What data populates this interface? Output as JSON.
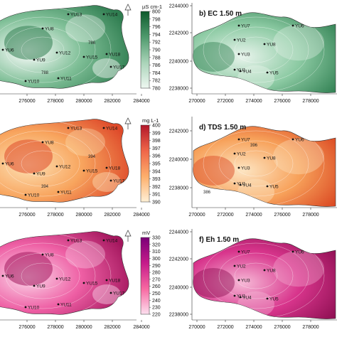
{
  "figure": {
    "panels": [
      {
        "id": "a",
        "label": "",
        "colorbar": {
          "unit": "µS cm-1",
          "ticks": [
            "800",
            "798",
            "796",
            "794",
            "792",
            "790",
            "788",
            "786",
            "784",
            "782",
            "780"
          ],
          "colors": [
            "#0d5a2c",
            "#4f9a6d",
            "#a9d3b8",
            "#eef7f1"
          ]
        },
        "fill": [
          "#ffffff",
          "#7fbf97",
          "#2f7d50"
        ],
        "wells": [
          "YU13",
          "YU14",
          "YU8",
          "YU6",
          "YU9",
          "YU12",
          "YU15",
          "YU18",
          "YU17",
          "YU11",
          "YU10"
        ],
        "contours": [
          "786",
          "788"
        ],
        "x_ticks": [
          "276000",
          "278000",
          "280000",
          "282000",
          "284000"
        ],
        "north": "N"
      },
      {
        "id": "b",
        "label": "b) EC 1.50 m",
        "wells": [
          "YU7",
          "YU6",
          "YU2",
          "YU3",
          "YU8",
          "YU1",
          "YU4",
          "YU5"
        ],
        "fill": [
          "#e8f4ec",
          "#8ccaa3",
          "#2e7e50"
        ],
        "x_ticks": [
          "270000",
          "272000",
          "274000",
          "276000",
          "278000"
        ],
        "y_ticks": [
          "2244000",
          "2242000",
          "2240000",
          "2238000"
        ]
      },
      {
        "id": "c",
        "label": "",
        "colorbar": {
          "unit": "mg L-1",
          "ticks": [
            "400",
            "399",
            "398",
            "397",
            "396",
            "395",
            "394",
            "393",
            "392",
            "391",
            "390"
          ],
          "colors": [
            "#b2182b",
            "#ef6548",
            "#fdae6b",
            "#fff0d6"
          ]
        },
        "fill": [
          "#fde1b5",
          "#f8a55e",
          "#de4a2a"
        ],
        "wells": [
          "YU13",
          "YU14",
          "YU8",
          "YU6",
          "YU9",
          "YU12",
          "YU15",
          "YU18",
          "YU17",
          "YU11",
          "YU10"
        ],
        "contours": [
          "394",
          "394"
        ],
        "x_ticks": [
          "276000",
          "278000",
          "280000",
          "282000",
          "284000"
        ],
        "north": "N"
      },
      {
        "id": "d",
        "label": "d) TDS 1.50 m",
        "wells": [
          "YU7",
          "YU6",
          "YU2",
          "YU3",
          "YU8",
          "YU1",
          "YU4",
          "YU5"
        ],
        "contours": [
          "396",
          "386"
        ],
        "fill": [
          "#fde5c2",
          "#f7a15a",
          "#d9431f"
        ],
        "x_ticks": [
          "270000",
          "272000",
          "274000",
          "276000",
          "278000"
        ],
        "y_ticks": [
          "2242000",
          "2240000",
          "2238000"
        ]
      },
      {
        "id": "e",
        "label": "",
        "colorbar": {
          "unit": "mV",
          "ticks": [
            "330",
            "320",
            "310",
            "300",
            "290",
            "280",
            "270",
            "260",
            "250",
            "240",
            "230",
            "220"
          ],
          "colors": [
            "#7a0177",
            "#c51b8a",
            "#f768a1",
            "#fde0ef"
          ]
        },
        "fill": [
          "#fbd8ea",
          "#ee5fa4",
          "#a3165d"
        ],
        "wells": [
          "YU13",
          "YU14",
          "YU8",
          "YU6",
          "YU9",
          "YU12",
          "YU15",
          "YU18",
          "YU17",
          "YU11",
          "YU10"
        ],
        "x_ticks": [
          "276000",
          "278000",
          "280000",
          "282000",
          "284000"
        ],
        "north": "N"
      },
      {
        "id": "f",
        "label": "f) Eh 1.50 m",
        "wells": [
          "YU7",
          "YU6",
          "YU2",
          "YU3",
          "YU8",
          "YU1",
          "YU4",
          "YU5"
        ],
        "fill": [
          "#f6b8d6",
          "#d8358c",
          "#8a0d4f"
        ],
        "x_ticks": [
          "270000",
          "272000",
          "274000",
          "276000",
          "278000"
        ],
        "y_ticks": [
          "2244000",
          "2242000",
          "2240000",
          "2238000"
        ]
      }
    ]
  },
  "chart_data": [
    {
      "type": "heatmap",
      "title": "",
      "colorbar_label": "µS cm-1",
      "colorbar_range": [
        780,
        800
      ],
      "x_ticks": [
        276000,
        278000,
        280000,
        282000,
        284000
      ],
      "wells": [
        "YU13",
        "YU14",
        "YU8",
        "YU6",
        "YU9",
        "YU12",
        "YU15",
        "YU18",
        "YU17",
        "YU11",
        "YU10"
      ],
      "contour_labels": [
        786,
        788
      ]
    },
    {
      "type": "heatmap",
      "title": "b) EC 1.50 m",
      "x_ticks": [
        270000,
        272000,
        274000,
        276000,
        278000
      ],
      "y_ticks": [
        2244000,
        2242000,
        2240000,
        2238000
      ],
      "wells": [
        "YU7",
        "YU6",
        "YU2",
        "YU3",
        "YU8",
        "YU1",
        "YU4",
        "YU5"
      ]
    },
    {
      "type": "heatmap",
      "title": "",
      "colorbar_label": "mg L-1",
      "colorbar_range": [
        390,
        400
      ],
      "x_ticks": [
        276000,
        278000,
        280000,
        282000,
        284000
      ],
      "wells": [
        "YU13",
        "YU14",
        "YU8",
        "YU6",
        "YU9",
        "YU12",
        "YU15",
        "YU18",
        "YU17",
        "YU11",
        "YU10"
      ],
      "contour_labels": [
        394,
        394
      ]
    },
    {
      "type": "heatmap",
      "title": "d) TDS 1.50 m",
      "x_ticks": [
        270000,
        272000,
        274000,
        276000,
        278000
      ],
      "y_ticks": [
        2242000,
        2240000,
        2238000
      ],
      "wells": [
        "YU7",
        "YU6",
        "YU2",
        "YU3",
        "YU8",
        "YU1",
        "YU4",
        "YU5"
      ],
      "contour_labels": [
        396,
        386
      ]
    },
    {
      "type": "heatmap",
      "title": "",
      "colorbar_label": "mV",
      "colorbar_range": [
        220,
        330
      ],
      "x_ticks": [
        276000,
        278000,
        280000,
        282000,
        284000
      ],
      "wells": [
        "YU13",
        "YU14",
        "YU8",
        "YU6",
        "YU9",
        "YU12",
        "YU15",
        "YU18",
        "YU17",
        "YU11",
        "YU10"
      ]
    },
    {
      "type": "heatmap",
      "title": "f) Eh 1.50 m",
      "x_ticks": [
        270000,
        272000,
        274000,
        276000,
        278000
      ],
      "y_ticks": [
        2244000,
        2242000,
        2240000,
        2238000
      ],
      "wells": [
        "YU7",
        "YU6",
        "YU2",
        "YU3",
        "YU8",
        "YU1",
        "YU4",
        "YU5"
      ]
    }
  ]
}
